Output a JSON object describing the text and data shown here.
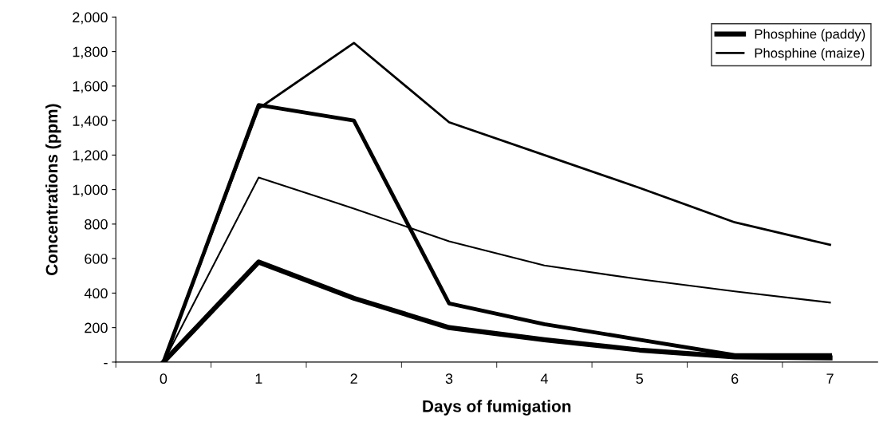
{
  "chart_data": {
    "type": "line",
    "xlabel": "Days of fumigation",
    "ylabel": "Concentrations (ppm)",
    "categories": [
      "0",
      "1",
      "2",
      "3",
      "4",
      "5",
      "6",
      "7"
    ],
    "series": [
      {
        "name": "Phosphine (paddy)",
        "color": "#000000",
        "values": [
          0,
          580,
          370,
          200,
          130,
          70,
          30,
          25
        ]
      },
      {
        "color": "#000000",
        "values": [
          0,
          1490,
          1400,
          340,
          220,
          130,
          40,
          40
        ]
      },
      {
        "name": "Phosphine (maize)",
        "color": "#000000",
        "values": [
          0,
          1470,
          1850,
          1390,
          1200,
          1010,
          810,
          680
        ]
      },
      {
        "color": "#000000",
        "values": [
          0,
          1070,
          890,
          700,
          560,
          480,
          410,
          345
        ]
      }
    ],
    "ylim": [
      0,
      2000
    ],
    "yticks": [
      {
        "value": 0,
        "label": "-"
      },
      200,
      400,
      600,
      800,
      {
        "value": 1000,
        "label": "1,000"
      },
      {
        "value": 1200,
        "label": "1,200"
      },
      {
        "value": 1400,
        "label": "1,400"
      },
      {
        "value": 1600,
        "label": "1,600"
      },
      {
        "value": 1800,
        "label": "1,800"
      },
      {
        "value": 2000,
        "label": "2,000"
      }
    ],
    "grid": false,
    "legend": "top right",
    "marker": "none",
    "line_style": "solid"
  }
}
